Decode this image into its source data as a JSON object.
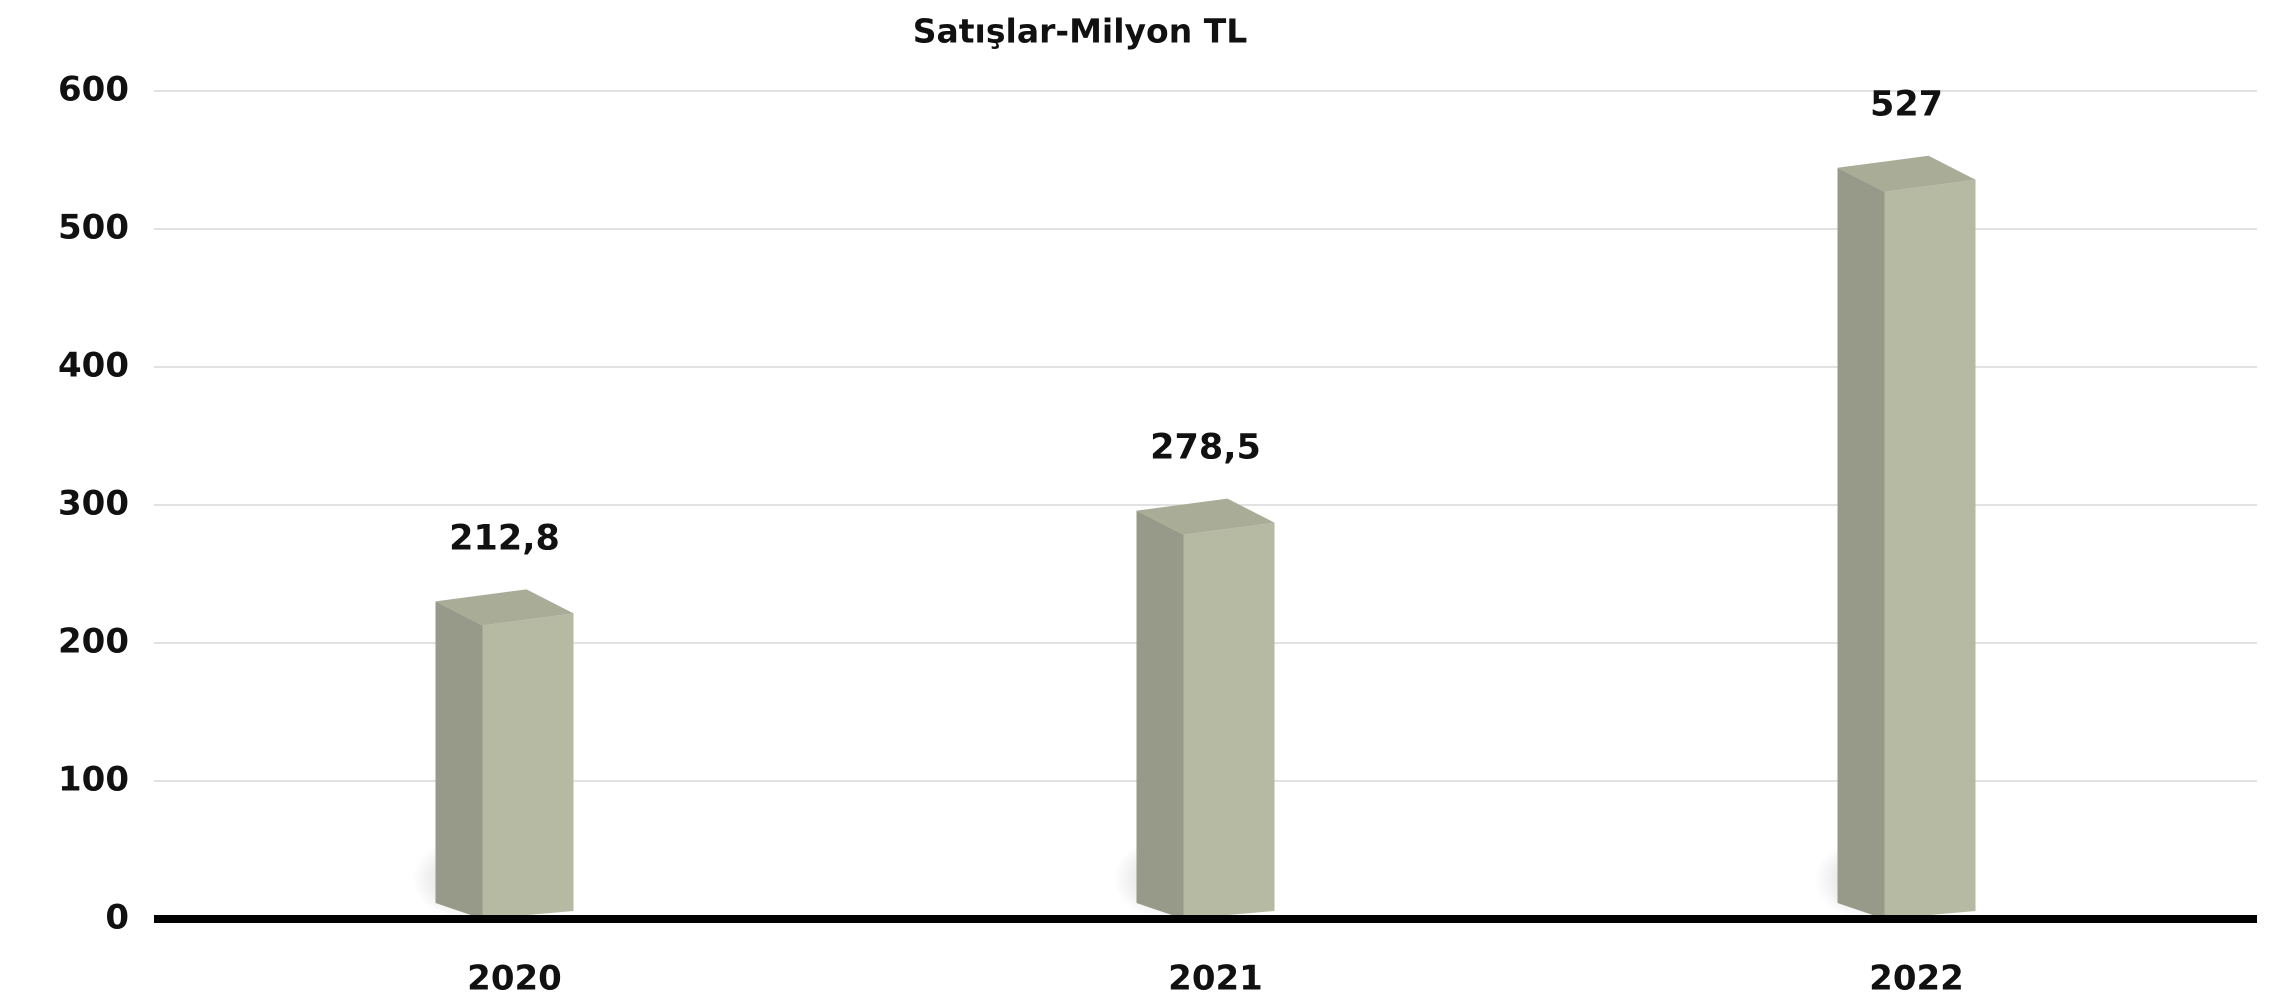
{
  "chart_data": {
    "type": "bar3d",
    "title": "Satışlar-Milyon TL",
    "categories": [
      "2020",
      "2021",
      "2022"
    ],
    "values": [
      212.8,
      278.5,
      527
    ],
    "value_labels": [
      "212,8",
      "278,5",
      "527"
    ],
    "colors": {
      "front": "#b7baa3",
      "side": "#979a88",
      "top": "#a9ac96"
    },
    "ylim": [
      0,
      600
    ],
    "yticks": [
      0,
      100,
      200,
      300,
      400,
      500,
      600
    ],
    "grid": true
  }
}
